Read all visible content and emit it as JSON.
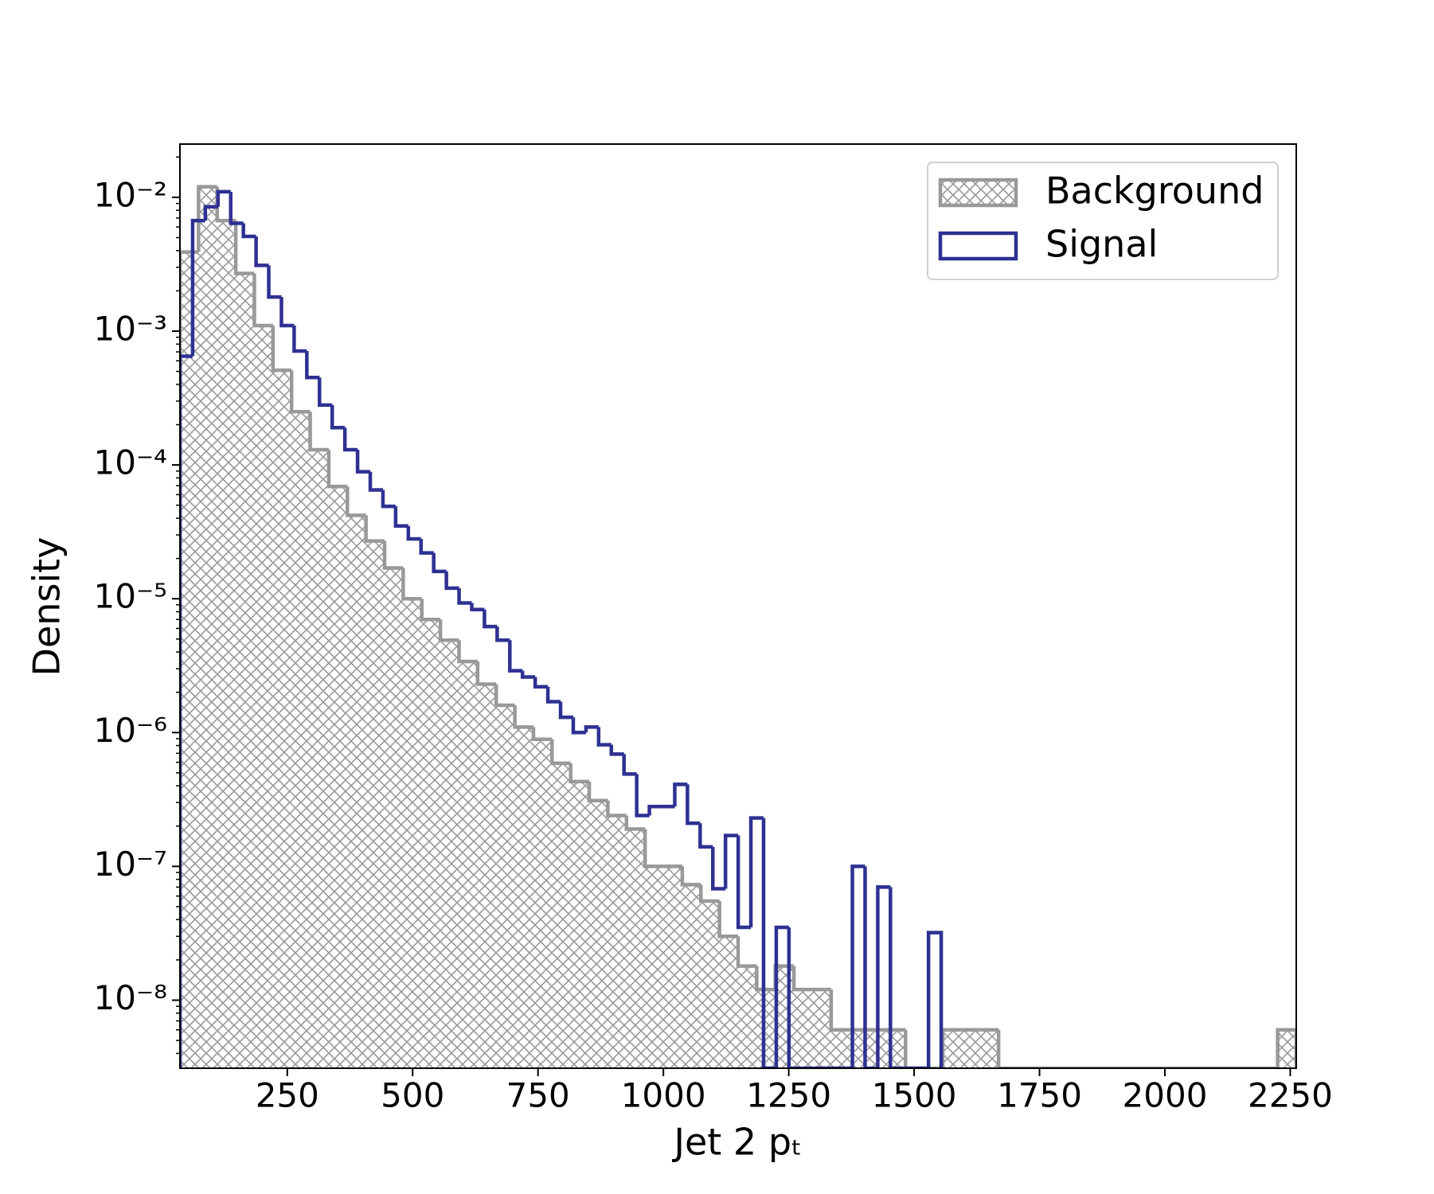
{
  "chart_data": {
    "type": "histogram",
    "xlabel": "Jet 2 pₜ",
    "ylabel": "Density",
    "xlim": [
      36,
      2262
    ],
    "xticks": [
      250,
      500,
      750,
      1000,
      1250,
      1500,
      1750,
      2000,
      2250
    ],
    "ylim": [
      3.1e-09,
      0.025
    ],
    "yscale": "log",
    "yticks": [
      {
        "value": 0.01,
        "label": "10⁻²"
      },
      {
        "value": 0.001,
        "label": "10⁻³"
      },
      {
        "value": 0.0001,
        "label": "10⁻⁴"
      },
      {
        "value": 1e-05,
        "label": "10⁻⁵"
      },
      {
        "value": 1e-06,
        "label": "10⁻⁶"
      },
      {
        "value": 1e-07,
        "label": "10⁻⁷"
      },
      {
        "value": 1e-08,
        "label": "10⁻⁸"
      }
    ],
    "grid": false,
    "legend_loc": "upper right",
    "series": [
      {
        "name": "Background",
        "color": "#999999",
        "hatch": "xx",
        "bins": [
          36,
          73.1,
          110.2,
          147.3,
          184.4,
          221.5,
          258.6,
          295.7,
          332.8,
          369.9,
          407,
          444.1,
          481.2,
          518.3,
          555.4,
          592.5,
          629.6,
          666.7,
          703.8,
          740.9,
          778,
          815.1,
          852.2,
          889.3,
          926.4,
          963.5,
          1000.6,
          1037.7,
          1074.8,
          1111.9,
          1149,
          1186.1,
          1223.2,
          1260.3,
          1297.4,
          1334.5,
          1371.6,
          1408.7,
          1445.8,
          1482.9,
          1520,
          1557.1,
          1594.2,
          1631.3,
          1668.4,
          1705.5,
          1742.6,
          1779.7,
          1816.8,
          1853.9,
          1891,
          1928.1,
          1965.2,
          2002.3,
          2039.4,
          2076.5,
          2113.6,
          2150.7,
          2187.8,
          2224.9,
          2262
        ],
        "values": [
          0.0039,
          0.012,
          0.0067,
          0.0027,
          0.0011,
          0.00051,
          0.00025,
          0.00013,
          6.9e-05,
          4.2e-05,
          2.7e-05,
          1.7e-05,
          1e-05,
          7e-06,
          4.9e-06,
          3.4e-06,
          2.3e-06,
          1.6e-06,
          1.1e-06,
          8.9e-07,
          5.9e-07,
          4.3e-07,
          3.1e-07,
          2.4e-07,
          1.9e-07,
          1e-07,
          1e-07,
          7.3e-08,
          5.5e-08,
          3e-08,
          1.8e-08,
          1.2e-08,
          1.8e-08,
          1.2e-08,
          1.2e-08,
          6e-09,
          6e-09,
          6e-09,
          6e-09,
          0,
          0,
          6e-09,
          6e-09,
          6e-09,
          0,
          0,
          0,
          0,
          0,
          0,
          0,
          0,
          0,
          0,
          0,
          0,
          0,
          0,
          0,
          6e-09
        ]
      },
      {
        "name": "Signal",
        "color": "#2e3192",
        "bins": [
          36,
          61.3,
          86.6,
          111.9,
          137.2,
          162.5,
          187.8,
          213.1,
          238.4,
          263.7,
          289,
          314.3,
          339.6,
          364.9,
          390.2,
          415.5,
          440.8,
          466.1,
          491.4,
          516.7,
          542,
          567.3,
          592.6,
          617.9,
          643.2,
          668.5,
          693.8,
          719.1,
          744.4,
          769.7,
          795,
          820.3,
          845.6,
          870.9,
          896.2,
          921.5,
          946.8,
          972.1,
          997.4,
          1022.7,
          1048,
          1073.3,
          1098.6,
          1123.9,
          1149.2,
          1174.5,
          1199.8,
          1225.1,
          1250.4,
          1275.7,
          1301,
          1326.3,
          1351.6,
          1376.9,
          1402.2,
          1427.5,
          1452.8,
          1478.1,
          1503.4,
          1528.7,
          1554
        ],
        "values": [
          0.00065,
          0.0067,
          0.0085,
          0.011,
          0.0064,
          0.0051,
          0.0031,
          0.0018,
          0.0011,
          0.00071,
          0.00045,
          0.00028,
          0.00019,
          0.00013,
          8.9e-05,
          6.5e-05,
          4.9e-05,
          3.5e-05,
          2.8e-05,
          2.2e-05,
          1.6e-05,
          1.2e-05,
          9.3e-06,
          8.3e-06,
          6.2e-06,
          4.9e-06,
          2.9e-06,
          2.6e-06,
          2.2e-06,
          1.7e-06,
          1.3e-06,
          1e-06,
          1.1e-06,
          8.1e-07,
          6.9e-07,
          4.9e-07,
          2.4e-07,
          2.8e-07,
          2.8e-07,
          4.1e-07,
          2.1e-07,
          1.4e-07,
          6.8e-08,
          1.7e-07,
          3.5e-08,
          2.3e-07,
          0,
          3.5e-08,
          0,
          0,
          0,
          0,
          0,
          1e-07,
          0,
          7e-08,
          0,
          0,
          0,
          3.2e-08
        ]
      }
    ]
  }
}
